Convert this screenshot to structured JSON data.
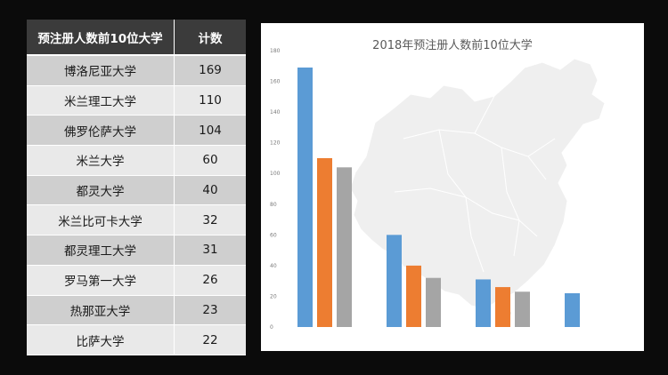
{
  "table": {
    "headers": [
      "预注册人数前10位大学",
      "计数"
    ],
    "rows": [
      {
        "name": "博洛尼亚大学",
        "count": "169"
      },
      {
        "name": "米兰理工大学",
        "count": "110"
      },
      {
        "name": "佛罗伦萨大学",
        "count": "104"
      },
      {
        "name": "米兰大学",
        "count": "60"
      },
      {
        "name": "都灵大学",
        "count": "40"
      },
      {
        "name": "米兰比可卡大学",
        "count": "32"
      },
      {
        "name": "都灵理工大学",
        "count": "31"
      },
      {
        "name": "罗马第一大学",
        "count": "26"
      },
      {
        "name": "热那亚大学",
        "count": "23"
      },
      {
        "name": "比萨大学",
        "count": "22"
      }
    ]
  },
  "chart_data": {
    "type": "bar",
    "title": "2018年预注册人数前10位大学",
    "xlabel": "",
    "ylabel": "",
    "ylim": [
      0,
      180
    ],
    "yticks": [
      "0",
      "20",
      "40",
      "60",
      "80",
      "100",
      "120",
      "140",
      "160",
      "180"
    ],
    "grid": false,
    "legend": "none",
    "groups": [
      {
        "values": [
          169,
          110,
          104
        ]
      },
      {
        "values": [
          60,
          40,
          32
        ]
      },
      {
        "values": [
          31,
          26,
          23
        ]
      },
      {
        "values": [
          22
        ]
      }
    ],
    "colors": [
      "#5b9bd5",
      "#ed7d31",
      "#a5a5a5"
    ],
    "background_map": "china-map-silhouette"
  }
}
